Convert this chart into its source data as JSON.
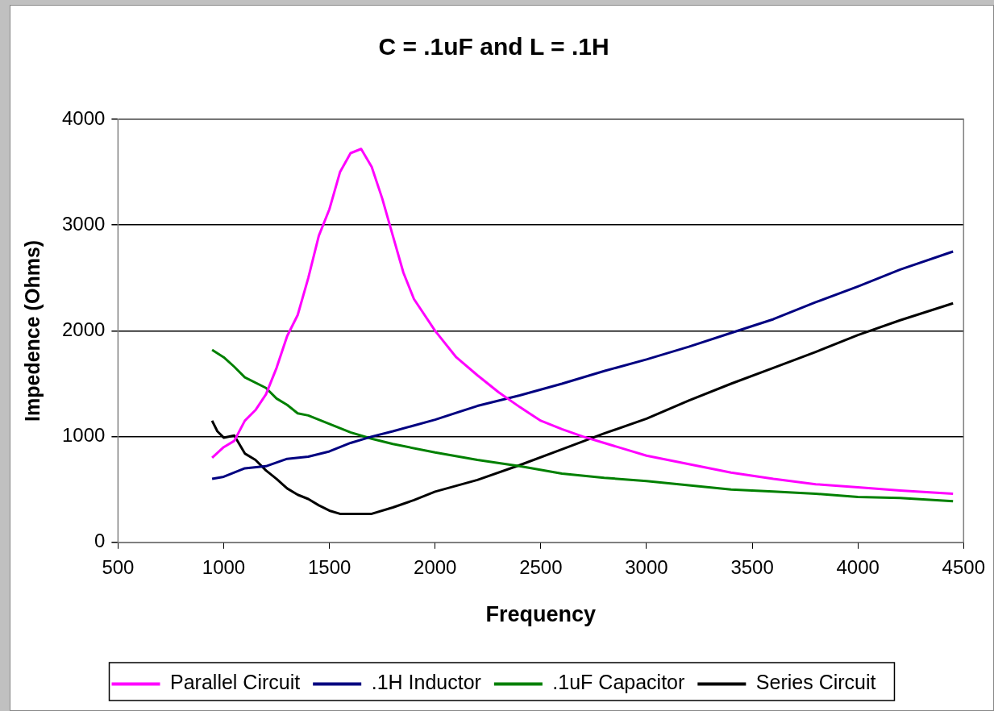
{
  "chart_data": {
    "type": "line",
    "title": "C = .1uF and L = .1H",
    "xlabel": "Frequency",
    "ylabel": "Impedence (Ohms)",
    "xlim": [
      500,
      4500
    ],
    "xticks": [
      500,
      1000,
      1500,
      2000,
      2500,
      3000,
      3500,
      4000,
      4500
    ],
    "ylim": [
      0,
      4000
    ],
    "yticks": [
      0,
      1000,
      2000,
      3000,
      4000
    ],
    "grid": "y",
    "legend": "bottom",
    "marker": "none",
    "line_style": "solid",
    "series": [
      {
        "name": "Parallel Circuit",
        "color": "#ff00ff",
        "x": [
          945,
          1000,
          1050,
          1100,
          1150,
          1200,
          1250,
          1300,
          1350,
          1400,
          1450,
          1500,
          1550,
          1600,
          1650,
          1700,
          1750,
          1800,
          1850,
          1900,
          2000,
          2100,
          2200,
          2300,
          2400,
          2500,
          2600,
          2700,
          2800,
          2900,
          3000,
          3200,
          3400,
          3600,
          3800,
          4000,
          4200,
          4450
        ],
        "values": [
          800,
          900,
          960,
          1150,
          1250,
          1400,
          1650,
          1950,
          2150,
          2500,
          2900,
          3150,
          3500,
          3680,
          3720,
          3550,
          3250,
          2900,
          2550,
          2300,
          2000,
          1750,
          1580,
          1420,
          1280,
          1150,
          1070,
          1000,
          940,
          880,
          820,
          740,
          660,
          600,
          550,
          520,
          490,
          460
        ]
      },
      {
        "name": ".1H Inductor",
        "color": "#000080",
        "x": [
          945,
          1000,
          1100,
          1200,
          1300,
          1400,
          1500,
          1600,
          1700,
          1800,
          2000,
          2200,
          2400,
          2600,
          2800,
          3000,
          3200,
          3400,
          3600,
          3800,
          4000,
          4200,
          4450
        ],
        "values": [
          600,
          620,
          700,
          720,
          790,
          810,
          860,
          940,
          1000,
          1050,
          1160,
          1290,
          1390,
          1500,
          1620,
          1730,
          1850,
          1980,
          2110,
          2270,
          2420,
          2580,
          2750
        ]
      },
      {
        "name": ".1uF Capacitor",
        "color": "#008000",
        "x": [
          945,
          1000,
          1050,
          1100,
          1200,
          1250,
          1300,
          1350,
          1400,
          1500,
          1600,
          1700,
          1800,
          2000,
          2200,
          2400,
          2600,
          2800,
          3000,
          3200,
          3400,
          3600,
          3800,
          4000,
          4200,
          4450
        ],
        "values": [
          1820,
          1750,
          1660,
          1560,
          1460,
          1360,
          1300,
          1220,
          1200,
          1120,
          1040,
          980,
          930,
          850,
          780,
          720,
          650,
          610,
          580,
          540,
          500,
          480,
          460,
          430,
          420,
          390
        ]
      },
      {
        "name": "Series Circuit",
        "color": "#000000",
        "x": [
          945,
          970,
          1000,
          1050,
          1100,
          1150,
          1200,
          1250,
          1300,
          1350,
          1400,
          1450,
          1500,
          1550,
          1600,
          1700,
          1800,
          1900,
          2000,
          2200,
          2400,
          2600,
          2800,
          3000,
          3200,
          3400,
          3600,
          3800,
          4000,
          4200,
          4450
        ],
        "values": [
          1150,
          1050,
          990,
          1010,
          840,
          780,
          680,
          600,
          510,
          450,
          410,
          350,
          300,
          270,
          270,
          270,
          330,
          400,
          480,
          590,
          730,
          880,
          1030,
          1170,
          1340,
          1500,
          1650,
          1800,
          1960,
          2100,
          2260
        ]
      }
    ]
  }
}
